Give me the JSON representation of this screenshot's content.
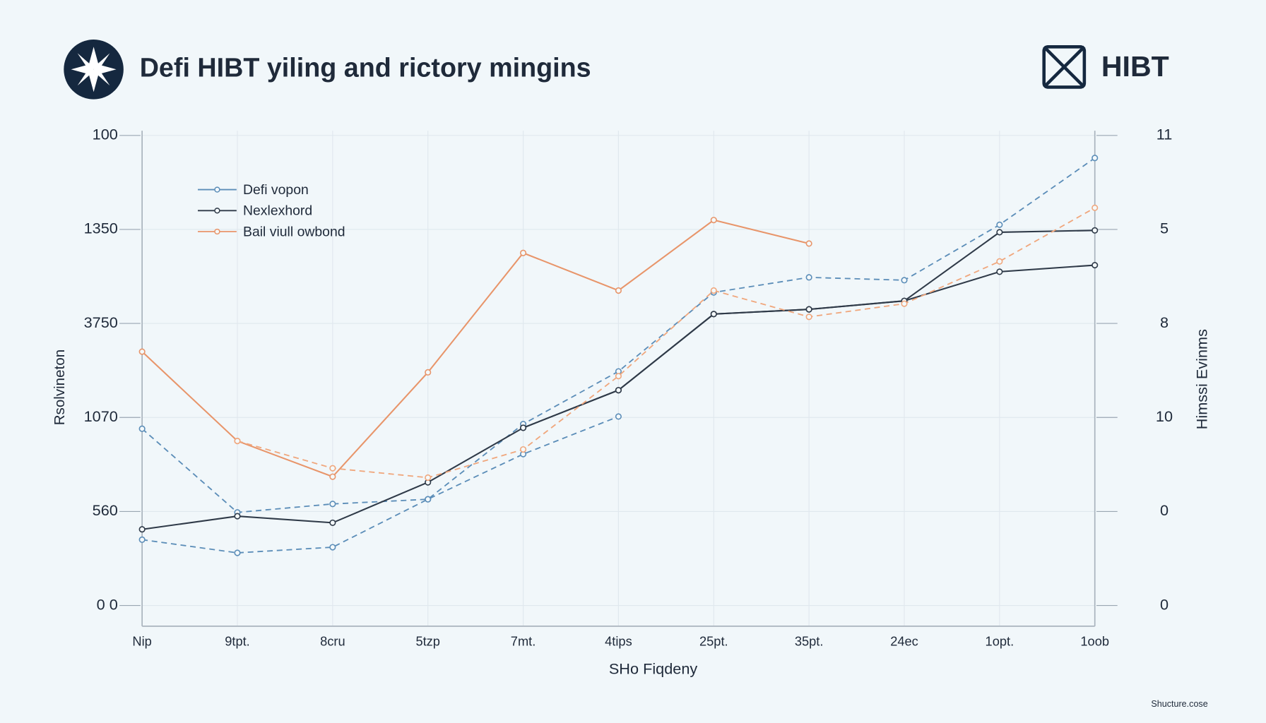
{
  "chart_data": {
    "type": "line",
    "title": "Defi HIBT yiling and rictory mingins",
    "brand": "HIBT",
    "footer": "Shucture.cose",
    "x_label": "SHo Fiqdeny",
    "y_label": "Rsolvineton",
    "y2_label": "Himssi Evinms",
    "categories": [
      "Nip",
      "9tpt.",
      "8cru",
      "5tzp",
      "7mt.",
      "4tips",
      "25pt.",
      "35pt.",
      "24ec",
      "1opt.",
      "1oob"
    ],
    "ylim": [
      -0.22,
      5.05
    ],
    "yticks": [
      {
        "value": 0,
        "label": "0 0"
      },
      {
        "value": 1,
        "label": "560"
      },
      {
        "value": 2,
        "label": "1070"
      },
      {
        "value": 3,
        "label": "3750"
      },
      {
        "value": 4,
        "label": "1350"
      },
      {
        "value": 5,
        "label": "100"
      }
    ],
    "y2lim": [
      -0.22,
      5.05
    ],
    "y2ticks": [
      {
        "value": 0,
        "label": "0"
      },
      {
        "value": 1,
        "label": "0"
      },
      {
        "value": 2,
        "label": "10"
      },
      {
        "value": 3,
        "label": "8"
      },
      {
        "value": 4,
        "label": "5"
      },
      {
        "value": 5,
        "label": "11"
      }
    ],
    "grid": true,
    "legend": "upper left",
    "series": [
      {
        "name": "Defi vopon",
        "color": "#5b8db8",
        "dashed": true,
        "values": [
          1.88,
          0.99,
          1.08,
          1.13,
          1.93,
          2.49,
          3.33,
          3.49,
          3.46,
          4.05,
          4.76
        ]
      },
      {
        "name": "Nexlexhord",
        "color": "#2f3a48",
        "dashed": false,
        "values": [
          0.81,
          0.95,
          0.88,
          1.31,
          1.89,
          2.29,
          3.1,
          3.15,
          3.24,
          3.97,
          3.99
        ]
      },
      {
        "name": "Bail viull owbond",
        "color": "#e8956a",
        "dashed": false,
        "values": [
          2.7,
          1.75,
          1.37,
          2.48,
          3.75,
          3.35,
          4.1,
          3.85,
          null,
          null,
          null
        ]
      },
      {
        "color": "#5b8db8",
        "dashed": true,
        "values": [
          0.7,
          0.56,
          0.62,
          1.13,
          1.61,
          2.01,
          null,
          null,
          null,
          null,
          null
        ]
      },
      {
        "color": "#2f3a48",
        "dashed": false,
        "values": [
          null,
          null,
          null,
          null,
          1.89,
          2.29,
          3.1,
          3.15,
          3.24,
          3.55,
          3.62
        ]
      },
      {
        "color": "#f0a77d",
        "dashed": true,
        "values": [
          null,
          1.75,
          1.46,
          1.36,
          1.66,
          2.44,
          3.35,
          3.07,
          3.21,
          3.66,
          4.23
        ]
      }
    ]
  }
}
